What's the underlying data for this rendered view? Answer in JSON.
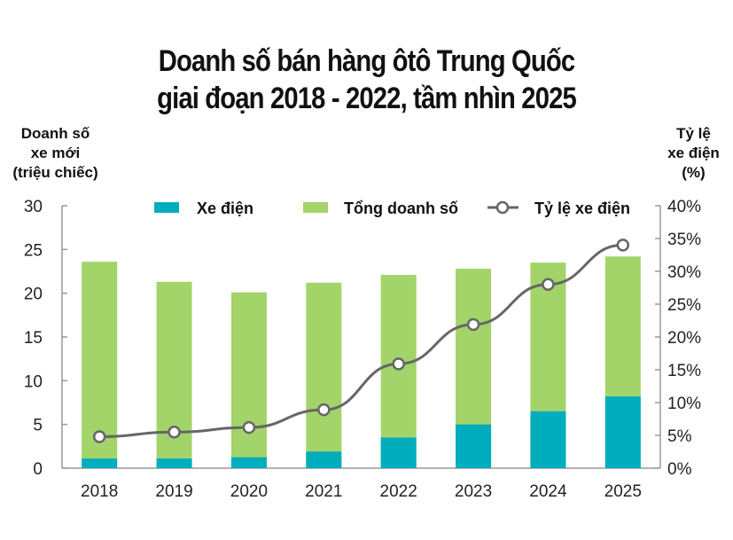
{
  "chart_data": {
    "type": "bar",
    "title_line1": "Doanh số bán hàng ôtô Trung Quốc",
    "title_line2": "giai đoạn 2018 - 2022, tầm nhìn 2025",
    "ylabel": [
      "Doanh số",
      "xe mới",
      "(triệu chiếc)"
    ],
    "y2label": [
      "Tỷ lệ",
      "xe điện",
      "(%)"
    ],
    "categories": [
      "2018",
      "2019",
      "2020",
      "2021",
      "2022",
      "2023",
      "2024",
      "2025"
    ],
    "ylim": [
      0,
      30
    ],
    "yticks": [
      0,
      5,
      10,
      15,
      20,
      25,
      30
    ],
    "y2lim": [
      0,
      40
    ],
    "y2ticks": [
      "0%",
      "5%",
      "10%",
      "15%",
      "20%",
      "25%",
      "30%",
      "35%",
      "40%"
    ],
    "legend_position": "top",
    "series": [
      {
        "name": "Xe điện",
        "kind": "bar",
        "color": "#00adbd",
        "values": [
          1.1,
          1.1,
          1.25,
          1.9,
          3.5,
          5.0,
          6.5,
          8.2
        ]
      },
      {
        "name": "Tổng doanh số",
        "kind": "bar",
        "color": "#a3d46a",
        "values": [
          23.6,
          21.3,
          20.1,
          21.2,
          22.1,
          22.8,
          23.5,
          24.2
        ]
      },
      {
        "name": "Tỷ lệ xe điện",
        "kind": "line",
        "axis": "right",
        "color": "#666666",
        "values": [
          4.8,
          5.5,
          6.2,
          8.9,
          15.9,
          21.9,
          28.0,
          34.0
        ]
      }
    ]
  }
}
